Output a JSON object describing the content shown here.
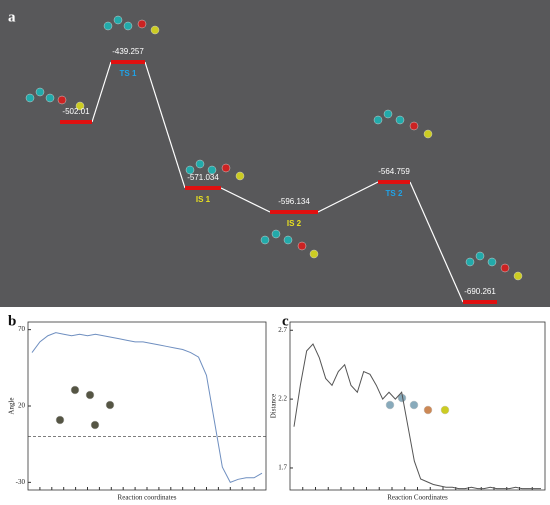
{
  "chart_data": [
    {
      "type": "energy",
      "panel": "a",
      "categories": [
        null,
        "TS 1",
        "IS 1",
        "IS 2",
        "TS 2",
        null
      ],
      "values": [
        -502.01,
        -439.257,
        -571.034,
        -596.134,
        -564.759,
        -690.261
      ],
      "label_colors": [
        null,
        "#1fa3e8",
        "#e8e020",
        "#e8e020",
        "#1fa3e8",
        null
      ],
      "color": "#e01010",
      "line_color": "#ffffff",
      "background": "#58585a"
    },
    {
      "type": "line",
      "panel": "b",
      "y_label": "Angle",
      "x_label": "Reaction coordinates",
      "values": [
        55,
        62,
        66,
        68,
        67,
        66,
        67,
        66,
        67,
        66,
        65,
        64,
        63,
        62,
        62,
        61,
        60,
        59,
        58,
        57,
        55,
        52,
        40,
        10,
        -20,
        -30,
        -28,
        -27,
        -27,
        -24
      ],
      "ylim": [
        -35,
        75
      ],
      "yticks": [
        70,
        20,
        -30
      ],
      "hline": 0,
      "color": "#6f8fc0"
    },
    {
      "type": "line",
      "panel": "c",
      "y_label": "Distance",
      "x_label": "Reaction Coordinates",
      "values": [
        2.0,
        2.3,
        2.55,
        2.6,
        2.5,
        2.35,
        2.3,
        2.4,
        2.45,
        2.3,
        2.25,
        2.4,
        2.38,
        2.3,
        2.2,
        2.25,
        2.2,
        2.25,
        2.0,
        1.75,
        1.62,
        1.6,
        1.58,
        1.57,
        1.56,
        1.56,
        1.55,
        1.55,
        1.56,
        1.55,
        1.55,
        1.56,
        1.55,
        1.55,
        1.55,
        1.56,
        1.55,
        1.55,
        1.55,
        1.55
      ],
      "ylim": [
        1.54,
        2.76
      ],
      "yticks": [
        2.7,
        2.2,
        1.7
      ],
      "color": "#555555"
    }
  ]
}
